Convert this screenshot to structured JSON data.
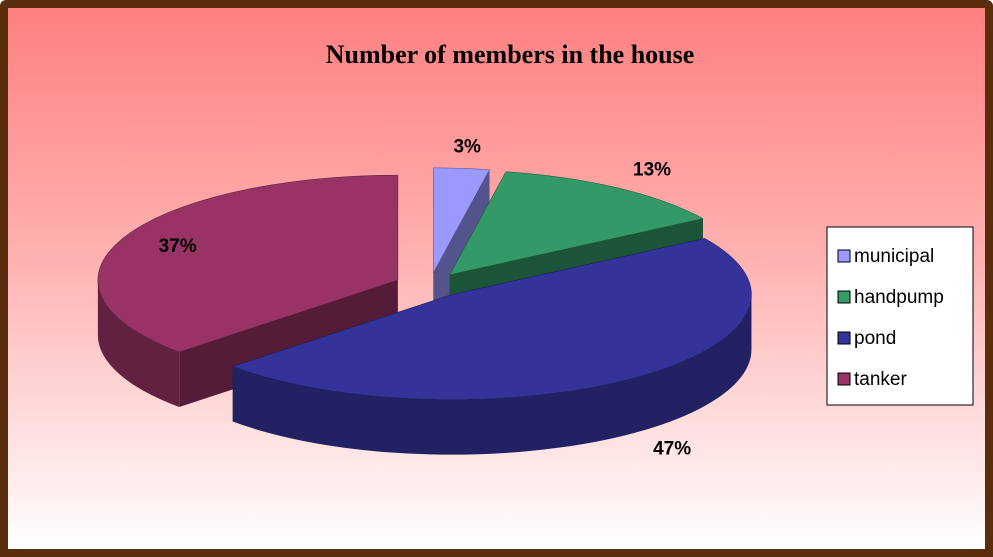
{
  "chart_data": {
    "type": "pie",
    "title": "Number of members in the house",
    "categories": [
      "municipal",
      "handpump",
      "pond",
      "tanker"
    ],
    "values": [
      3,
      13,
      47,
      37
    ],
    "value_labels": [
      "3%",
      "13%",
      "47%",
      "37%"
    ],
    "colors": [
      "#9999ff",
      "#339966",
      "#333399",
      "#993366"
    ],
    "legend": "right"
  }
}
